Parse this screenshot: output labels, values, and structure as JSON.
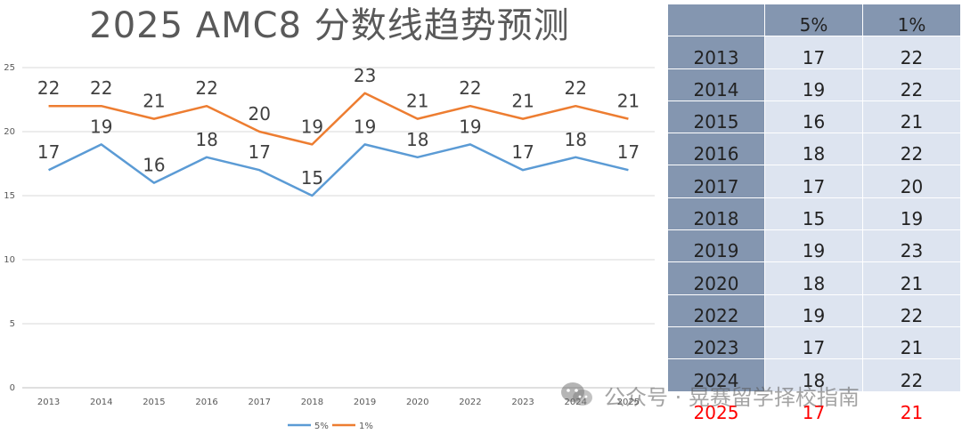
{
  "chart_data": {
    "type": "line",
    "title": "2025 AMC8 分数线趋势预测",
    "categories": [
      "2013",
      "2014",
      "2015",
      "2016",
      "2017",
      "2018",
      "2019",
      "2020",
      "2022",
      "2023",
      "2024",
      "2025"
    ],
    "series": [
      {
        "name": "5%",
        "values": [
          17,
          19,
          16,
          18,
          17,
          15,
          19,
          18,
          19,
          17,
          18,
          17
        ],
        "color": "#5b9bd5"
      },
      {
        "name": "1%",
        "values": [
          22,
          22,
          21,
          22,
          20,
          19,
          23,
          21,
          22,
          21,
          22,
          21
        ],
        "color": "#ed7d31"
      }
    ],
    "yticks": [
      "0",
      "5",
      "10",
      "15",
      "20",
      "25"
    ],
    "ylim": [
      0,
      25
    ],
    "grid": true,
    "legend": "bottom",
    "xlabel": "",
    "ylabel": ""
  },
  "table": {
    "headers": [
      "",
      "5%",
      "1%"
    ],
    "rows": [
      {
        "year": "2013",
        "p5": "17",
        "p1": "22"
      },
      {
        "year": "2014",
        "p5": "19",
        "p1": "22"
      },
      {
        "year": "2015",
        "p5": "16",
        "p1": "21"
      },
      {
        "year": "2016",
        "p5": "18",
        "p1": "22"
      },
      {
        "year": "2017",
        "p5": "17",
        "p1": "20"
      },
      {
        "year": "2018",
        "p5": "15",
        "p1": "19"
      },
      {
        "year": "2019",
        "p5": "19",
        "p1": "23"
      },
      {
        "year": "2020",
        "p5": "18",
        "p1": "21"
      },
      {
        "year": "2022",
        "p5": "19",
        "p1": "22"
      },
      {
        "year": "2023",
        "p5": "17",
        "p1": "21"
      },
      {
        "year": "2024",
        "p5": "18",
        "p1": "22"
      },
      {
        "year": "2025",
        "p5": "17",
        "p1": "21"
      }
    ],
    "highlight_color": "#ff0000"
  },
  "watermark": {
    "text": "公众号 · 晃赛留学择校指南",
    "icon": "wechat-icon"
  }
}
